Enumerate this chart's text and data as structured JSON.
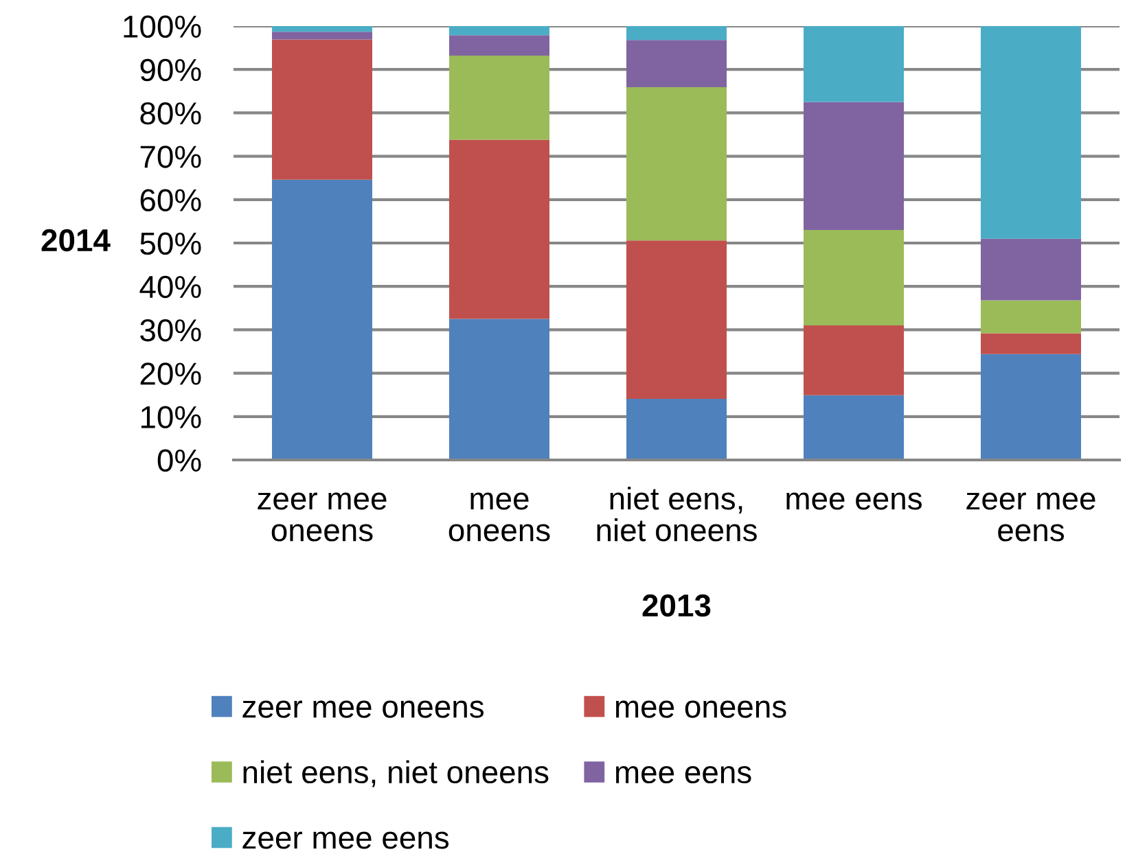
{
  "chart_data": {
    "type": "bar",
    "stacked": true,
    "xlabel": "2013",
    "ylabel": "2014",
    "categories": [
      "zeer mee oneens",
      "mee oneens",
      "niet eens, niet oneens",
      "mee eens",
      "zeer mee eens"
    ],
    "series": [
      {
        "name": "zeer mee oneens",
        "color": "#4f81bd",
        "values": [
          64.6,
          32.5,
          14.1,
          14.9,
          24.4
        ]
      },
      {
        "name": "mee oneens",
        "color": "#c0504d",
        "values": [
          32.3,
          41.3,
          36.5,
          16.1,
          4.8
        ]
      },
      {
        "name": "niet eens, niet oneens",
        "color": "#9bbb59",
        "values": [
          0,
          19.4,
          35.3,
          22.0,
          7.6
        ]
      },
      {
        "name": "mee eens",
        "color": "#8064a2",
        "values": [
          1.8,
          4.7,
          10.9,
          29.5,
          14.2
        ]
      },
      {
        "name": "zeer mee eens",
        "color": "#4bacc6",
        "values": [
          1.3,
          2.1,
          3.2,
          17.5,
          49.0
        ]
      }
    ],
    "ylim": [
      0,
      100
    ],
    "yticks": [
      {
        "value": 0,
        "label": "0%"
      },
      {
        "value": 10,
        "label": "10%"
      },
      {
        "value": 20,
        "label": "20%"
      },
      {
        "value": 30,
        "label": "30%"
      },
      {
        "value": 40,
        "label": "40%"
      },
      {
        "value": 50,
        "label": "50%"
      },
      {
        "value": 60,
        "label": "60%"
      },
      {
        "value": 70,
        "label": "70%"
      },
      {
        "value": 80,
        "label": "80%"
      },
      {
        "value": 90,
        "label": "90%"
      },
      {
        "value": 100,
        "label": "100%"
      }
    ],
    "grid": "y",
    "legend": "bottom"
  }
}
